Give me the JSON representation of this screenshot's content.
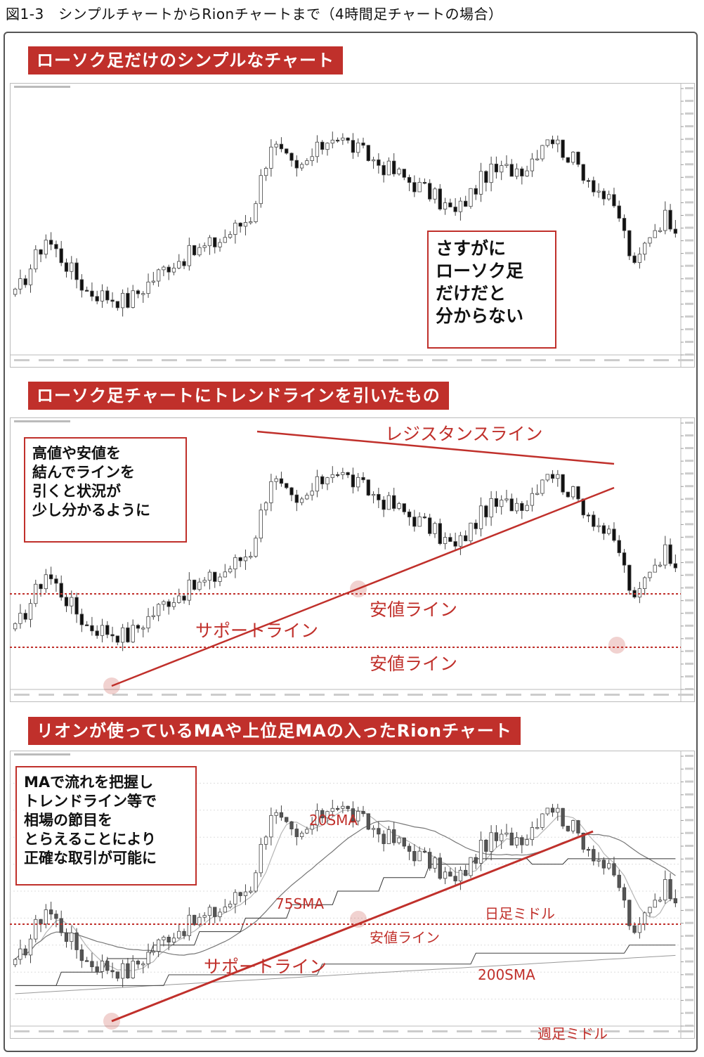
{
  "figure_title": "図1-3　シンプルチャートからRionチャートまで（4時間足チャートの場合）",
  "panels": [
    {
      "banner": "ローソク足だけのシンプルなチャート",
      "note": "さすがに\nローソク足\nだけだと\n分からない"
    },
    {
      "banner": "ローソク足チャートにトレンドラインを引いたもの",
      "note": "高値や安値を\n結んでラインを\n引くと状況が\n少し分かるように",
      "labels": {
        "resistance": "レジスタンスライン",
        "support": "サポートライン",
        "low_line_1": "安値ライン",
        "low_line_2": "安値ライン"
      }
    },
    {
      "banner": "リオンが使っているMAや上位足MAの入ったRionチャート",
      "note": "MAで流れを把握し\nトレンドライン等で\n相場の節目を\nとらえることにより\n正確な取引が可能に",
      "labels": {
        "sma20": "20SMA",
        "sma75": "75SMA",
        "sma200": "200SMA",
        "daily_mid": "日足ミドル",
        "weekly_mid": "週足ミドル",
        "low_line": "安値ライン",
        "support": "サポートライン"
      }
    }
  ],
  "colors": {
    "accent": "#c0302b",
    "bull": "#ffffff",
    "bear": "#111111",
    "sma": "#888888"
  },
  "chart_data": {
    "type": "candlestick",
    "timeframe": "4H",
    "candle_count": 130,
    "close_path": [
      [
        0,
        0.22
      ],
      [
        6,
        0.44
      ],
      [
        14,
        0.24
      ],
      [
        22,
        0.2
      ],
      [
        30,
        0.34
      ],
      [
        40,
        0.43
      ],
      [
        46,
        0.52
      ],
      [
        50,
        0.8
      ],
      [
        55,
        0.68
      ],
      [
        62,
        0.83
      ],
      [
        70,
        0.73
      ],
      [
        80,
        0.62
      ],
      [
        86,
        0.53
      ],
      [
        92,
        0.68
      ],
      [
        100,
        0.71
      ],
      [
        104,
        0.83
      ],
      [
        110,
        0.71
      ],
      [
        114,
        0.62
      ],
      [
        118,
        0.52
      ],
      [
        121,
        0.32
      ],
      [
        124,
        0.46
      ],
      [
        127,
        0.52
      ],
      [
        129,
        0.49
      ]
    ]
  }
}
